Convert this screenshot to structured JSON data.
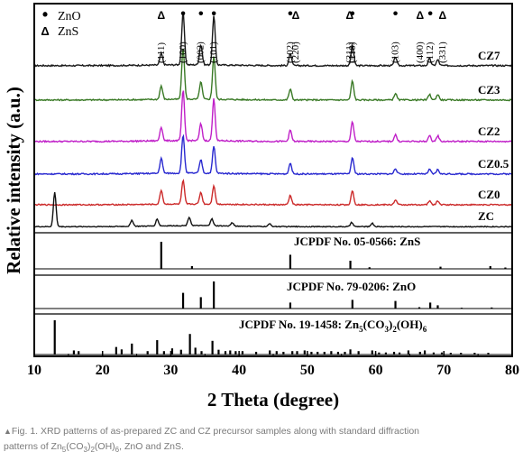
{
  "chart_data": {
    "type": "line",
    "xlabel": "2 Theta (degree)",
    "ylabel": "Relative intensity (a.u.)",
    "xlim": [
      10,
      80
    ],
    "xticks": [
      "10",
      "20",
      "30",
      "40",
      "50",
      "60",
      "70",
      "80"
    ],
    "legend": [
      {
        "symbol": "•",
        "label": "ZnO"
      },
      {
        "symbol": "Δ",
        "label": "ZnS"
      }
    ],
    "peak_labels": [
      {
        "hkl": "(111)",
        "x": 28.6,
        "marker": "Δ"
      },
      {
        "hkl": "(100)",
        "x": 31.8,
        "marker": "•"
      },
      {
        "hkl": "(002)",
        "x": 34.4,
        "marker": "•"
      },
      {
        "hkl": "(101)",
        "x": 36.3,
        "marker": "•"
      },
      {
        "hkl": "(102)",
        "x": 47.5,
        "marker": "•"
      },
      {
        "hkl": "(220)",
        "x": 48.3,
        "marker": "Δ"
      },
      {
        "hkl": "(311)",
        "x": 56.2,
        "marker": "Δ"
      },
      {
        "hkl": "(110)",
        "x": 56.6,
        "marker": "•"
      },
      {
        "hkl": "(103)",
        "x": 62.9,
        "marker": "•"
      },
      {
        "hkl": "(400)",
        "x": 66.5,
        "marker": "Δ"
      },
      {
        "hkl": "(112)",
        "x": 68.0,
        "marker": "•"
      },
      {
        "hkl": "(331)",
        "x": 69.8,
        "marker": "Δ"
      }
    ],
    "series": [
      {
        "name": "CZ7",
        "color": "#1a1a1a",
        "peaks": [
          [
            28.6,
            0.2
          ],
          [
            31.8,
            0.9
          ],
          [
            34.4,
            0.35
          ],
          [
            36.3,
            0.85
          ],
          [
            47.5,
            0.2
          ],
          [
            56.6,
            0.35
          ],
          [
            62.9,
            0.15
          ],
          [
            67.9,
            0.12
          ],
          [
            69.1,
            0.1
          ]
        ]
      },
      {
        "name": "CZ3",
        "color": "#3a7a26",
        "peaks": [
          [
            28.6,
            0.25
          ],
          [
            31.8,
            0.95
          ],
          [
            34.4,
            0.32
          ],
          [
            36.3,
            0.8
          ],
          [
            47.5,
            0.2
          ],
          [
            56.6,
            0.35
          ],
          [
            62.9,
            0.12
          ],
          [
            67.9,
            0.1
          ],
          [
            69.1,
            0.1
          ]
        ]
      },
      {
        "name": "CZ2",
        "color": "#c020c8",
        "peaks": [
          [
            28.6,
            0.25
          ],
          [
            31.8,
            0.9
          ],
          [
            34.4,
            0.3
          ],
          [
            36.3,
            0.75
          ],
          [
            47.5,
            0.2
          ],
          [
            56.6,
            0.35
          ],
          [
            62.9,
            0.12
          ],
          [
            67.9,
            0.1
          ],
          [
            69.1,
            0.1
          ]
        ]
      },
      {
        "name": "CZ0.5",
        "color": "#2a2ad0",
        "peaks": [
          [
            28.6,
            0.28
          ],
          [
            31.8,
            0.7
          ],
          [
            34.4,
            0.25
          ],
          [
            36.3,
            0.5
          ],
          [
            47.5,
            0.2
          ],
          [
            56.6,
            0.3
          ],
          [
            62.9,
            0.1
          ],
          [
            67.9,
            0.08
          ],
          [
            69.1,
            0.08
          ]
        ]
      },
      {
        "name": "CZ0",
        "color": "#cc2a2a",
        "peaks": [
          [
            28.6,
            0.3
          ],
          [
            31.8,
            0.5
          ],
          [
            34.4,
            0.25
          ],
          [
            36.3,
            0.4
          ],
          [
            47.5,
            0.2
          ],
          [
            56.6,
            0.3
          ],
          [
            62.9,
            0.1
          ],
          [
            67.9,
            0.08
          ],
          [
            69.1,
            0.08
          ]
        ]
      },
      {
        "name": "ZC",
        "color": "#111111",
        "peaks": [
          [
            13.0,
            1.0
          ],
          [
            24.3,
            0.18
          ],
          [
            28.0,
            0.2
          ],
          [
            32.7,
            0.25
          ],
          [
            36.0,
            0.2
          ],
          [
            39.0,
            0.1
          ],
          [
            44.5,
            0.08
          ],
          [
            56.5,
            0.12
          ],
          [
            59.5,
            0.1
          ]
        ]
      }
    ],
    "references": [
      {
        "label": "JCPDF No. 05-0566: ZnS",
        "sticks": [
          [
            28.6,
            1.0
          ],
          [
            33.1,
            0.1
          ],
          [
            47.5,
            0.52
          ],
          [
            56.3,
            0.3
          ],
          [
            59.1,
            0.06
          ],
          [
            69.5,
            0.08
          ],
          [
            76.8,
            0.1
          ],
          [
            79.0,
            0.05
          ]
        ]
      },
      {
        "label": "JCPDF No. 79-0206: ZnO",
        "sticks": [
          [
            31.8,
            0.58
          ],
          [
            34.4,
            0.42
          ],
          [
            36.3,
            1.0
          ],
          [
            47.5,
            0.22
          ],
          [
            56.6,
            0.32
          ],
          [
            62.9,
            0.28
          ],
          [
            66.4,
            0.05
          ],
          [
            68.0,
            0.22
          ],
          [
            69.1,
            0.12
          ],
          [
            72.6,
            0.03
          ],
          [
            77.0,
            0.04
          ]
        ]
      },
      {
        "label": "JCPDF No. 19-1458: Zn5(CO3)2(OH)6",
        "sticks": [
          [
            13.0,
            1.0
          ],
          [
            15.8,
            0.12
          ],
          [
            16.5,
            0.1
          ],
          [
            22.0,
            0.22
          ],
          [
            22.8,
            0.15
          ],
          [
            24.3,
            0.32
          ],
          [
            26.6,
            0.1
          ],
          [
            28.0,
            0.42
          ],
          [
            29.0,
            0.1
          ],
          [
            30.2,
            0.18
          ],
          [
            31.5,
            0.14
          ],
          [
            32.8,
            0.6
          ],
          [
            33.6,
            0.2
          ],
          [
            34.5,
            0.1
          ],
          [
            36.1,
            0.4
          ],
          [
            37.0,
            0.14
          ],
          [
            38.0,
            0.1
          ],
          [
            38.7,
            0.12
          ],
          [
            39.5,
            0.1
          ],
          [
            40.5,
            0.1
          ],
          [
            42.5,
            0.08
          ],
          [
            44.5,
            0.12
          ],
          [
            45.5,
            0.1
          ],
          [
            46.5,
            0.08
          ],
          [
            47.8,
            0.1
          ],
          [
            48.5,
            0.1
          ],
          [
            49.6,
            0.12
          ],
          [
            50.6,
            0.08
          ],
          [
            51.5,
            0.08
          ],
          [
            52.5,
            0.08
          ],
          [
            53.5,
            0.1
          ],
          [
            54.5,
            0.08
          ],
          [
            55.5,
            0.08
          ],
          [
            56.3,
            0.15
          ],
          [
            57.5,
            0.1
          ],
          [
            59.5,
            0.12
          ],
          [
            60.5,
            0.06
          ],
          [
            61.5,
            0.06
          ],
          [
            62.7,
            0.08
          ],
          [
            63.5,
            0.06
          ],
          [
            64.8,
            0.12
          ],
          [
            66.5,
            0.08
          ],
          [
            67.2,
            0.12
          ],
          [
            68.5,
            0.06
          ],
          [
            69.7,
            0.06
          ],
          [
            71.0,
            0.05
          ],
          [
            72.5,
            0.05
          ],
          [
            74.5,
            0.05
          ],
          [
            76.5,
            0.05
          ]
        ]
      }
    ]
  },
  "caption": {
    "marker": "▲",
    "text1": "Fig. 1. XRD patterns of as-prepared ZC and CZ precursor samples along with standard diffraction",
    "text2a": "patterns of Zn",
    "s1": "5",
    "text2b": "(CO",
    "s2": "3",
    "text2c": ")",
    "s3": "2",
    "text2d": "(OH)",
    "s4": "6",
    "text2e": ", ZnO and ZnS."
  }
}
